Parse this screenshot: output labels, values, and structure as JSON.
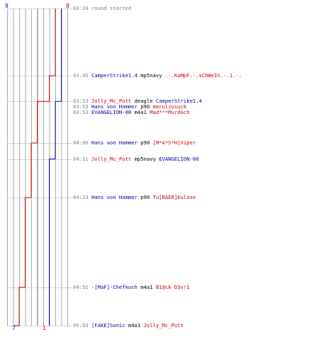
{
  "header": {
    "ct_start": "9",
    "t_start": "8",
    "ct_end": "7",
    "t_end": "1"
  },
  "colors": {
    "ct": "#0000cc",
    "t": "#dd0000",
    "grid": "#aaaaaa",
    "time": "#808080"
  },
  "timeline": {
    "start_time": "03:24",
    "end_time": "05:03"
  },
  "events": [
    {
      "time": "03:24",
      "note": "round started"
    },
    {
      "time": "03:45",
      "killer": "CamperStrike1.4",
      "killer_team": "ct",
      "weapon": "mp5navy",
      "victim": ".-.KaMpF.-.sChWeIn.-.1.-.",
      "victim_team": "t"
    },
    {
      "time": "03:53",
      "killer": "Jolly_Mc_Pott",
      "killer_team": "t",
      "weapon": "deagle",
      "victim": "CamperStrike1.4",
      "victim_team": "ct"
    },
    {
      "time": "03:53",
      "killer": "Hans von Hammer",
      "killer_team": "ct",
      "weapon": "p90",
      "victim": "merulzusuck",
      "victim_team": "t"
    },
    {
      "time": "03:53",
      "killer": "EVANGELION-00",
      "killer_team": "ct",
      "weapon": "m4a1",
      "victim": "Mad***Murdoch",
      "victim_team": "t"
    },
    {
      "time": "04:06",
      "killer": "Hans von Hammer",
      "killer_team": "ct",
      "weapon": "p90",
      "victim": "[M*A*S*H]Viper",
      "victim_team": "t"
    },
    {
      "time": "04:11",
      "killer": "Jolly_Mc_Pott",
      "killer_team": "t",
      "weapon": "mp5navy",
      "victim": "EVANGELION-00",
      "victim_team": "ct"
    },
    {
      "time": "04:23",
      "killer": "Hans von Hammer",
      "killer_team": "ct",
      "weapon": "p90",
      "victim": "Tu[BAER]kulose",
      "victim_team": "t"
    },
    {
      "time": "04:51",
      "killer": "-[MaF]-Chefkoch",
      "killer_team": "ct",
      "weapon": "m4a1",
      "victim": "B1@ck D3v!1",
      "victim_team": "t"
    },
    {
      "time": "05:03",
      "killer": "[FAKE]Sonic",
      "killer_team": "ct",
      "weapon": "m4a1",
      "victim": "Jolly_Mc_Pott",
      "victim_team": "t"
    }
  ]
}
